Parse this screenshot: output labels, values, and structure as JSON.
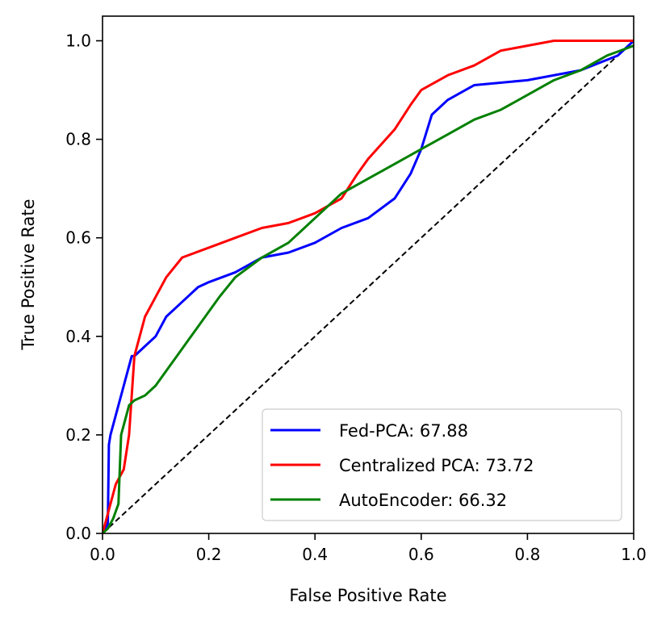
{
  "chart_data": {
    "type": "line",
    "title": "",
    "xlabel": "False Positive Rate",
    "ylabel": "True Positive Rate",
    "xlim": [
      0.0,
      1.0
    ],
    "ylim": [
      0.0,
      1.05
    ],
    "xticks": [
      0.0,
      0.2,
      0.4,
      0.6,
      0.8,
      1.0
    ],
    "yticks": [
      0.0,
      0.2,
      0.4,
      0.6,
      0.8,
      1.0
    ],
    "xtick_labels": [
      "0.0",
      "0.2",
      "0.4",
      "0.6",
      "0.8",
      "1.0"
    ],
    "ytick_labels": [
      "0.0",
      "0.2",
      "0.4",
      "0.6",
      "0.8",
      "1.0"
    ],
    "grid": false,
    "legend_position": "bottom-right",
    "series": [
      {
        "name": "Fed-PCA",
        "legend_label": "Fed-PCA: 67.88",
        "color": "#0000ff",
        "x": [
          0.0,
          0.01,
          0.012,
          0.015,
          0.02,
          0.03,
          0.04,
          0.05,
          0.055,
          0.06,
          0.08,
          0.1,
          0.12,
          0.15,
          0.18,
          0.2,
          0.25,
          0.3,
          0.35,
          0.4,
          0.45,
          0.5,
          0.55,
          0.58,
          0.6,
          0.62,
          0.65,
          0.7,
          0.8,
          0.9,
          0.97,
          1.0
        ],
        "y": [
          0.0,
          0.02,
          0.18,
          0.2,
          0.22,
          0.26,
          0.3,
          0.34,
          0.36,
          0.36,
          0.38,
          0.4,
          0.44,
          0.47,
          0.5,
          0.51,
          0.53,
          0.56,
          0.57,
          0.59,
          0.62,
          0.64,
          0.68,
          0.73,
          0.78,
          0.85,
          0.88,
          0.91,
          0.92,
          0.94,
          0.97,
          1.0
        ]
      },
      {
        "name": "Centralized PCA",
        "legend_label": "Centralized PCA: 73.72",
        "color": "#ff0000",
        "x": [
          0.0,
          0.01,
          0.02,
          0.025,
          0.03,
          0.04,
          0.05,
          0.06,
          0.07,
          0.08,
          0.09,
          0.1,
          0.12,
          0.15,
          0.2,
          0.25,
          0.3,
          0.35,
          0.4,
          0.45,
          0.48,
          0.5,
          0.55,
          0.58,
          0.6,
          0.65,
          0.7,
          0.75,
          0.8,
          0.85,
          0.9,
          1.0
        ],
        "y": [
          0.0,
          0.04,
          0.08,
          0.1,
          0.11,
          0.13,
          0.2,
          0.36,
          0.4,
          0.44,
          0.46,
          0.48,
          0.52,
          0.56,
          0.58,
          0.6,
          0.62,
          0.63,
          0.65,
          0.68,
          0.73,
          0.76,
          0.82,
          0.87,
          0.9,
          0.93,
          0.95,
          0.98,
          0.99,
          1.0,
          1.0,
          1.0
        ]
      },
      {
        "name": "AutoEncoder",
        "legend_label": "AutoEncoder: 66.32",
        "color": "#008000",
        "x": [
          0.0,
          0.01,
          0.02,
          0.03,
          0.035,
          0.04,
          0.05,
          0.06,
          0.08,
          0.1,
          0.12,
          0.14,
          0.16,
          0.18,
          0.2,
          0.22,
          0.25,
          0.3,
          0.35,
          0.4,
          0.45,
          0.5,
          0.55,
          0.6,
          0.65,
          0.7,
          0.75,
          0.8,
          0.85,
          0.9,
          0.95,
          1.0
        ],
        "y": [
          0.0,
          0.01,
          0.03,
          0.06,
          0.2,
          0.22,
          0.26,
          0.27,
          0.28,
          0.3,
          0.33,
          0.36,
          0.39,
          0.42,
          0.45,
          0.48,
          0.52,
          0.56,
          0.59,
          0.64,
          0.69,
          0.72,
          0.75,
          0.78,
          0.81,
          0.84,
          0.86,
          0.89,
          0.92,
          0.94,
          0.97,
          0.99
        ]
      }
    ],
    "reference_line": {
      "x": [
        0.0,
        1.0
      ],
      "y": [
        0.0,
        1.0
      ],
      "color": "#000000",
      "style": "dashed"
    }
  }
}
